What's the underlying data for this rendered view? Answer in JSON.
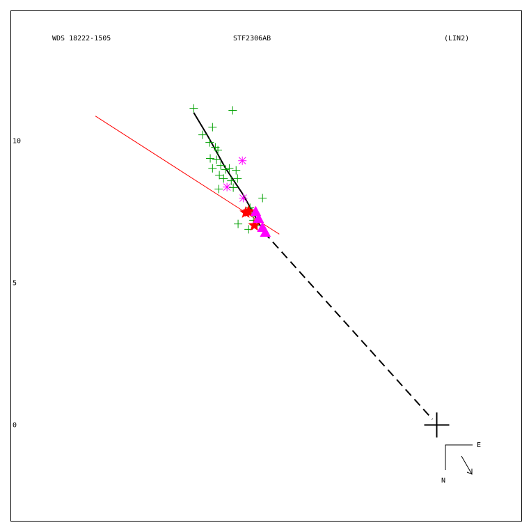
{
  "chart_data": {
    "type": "scatter",
    "title": "WDS 18222-1505",
    "subtitle": "STF2306AB",
    "annotation": "(LIN2)",
    "compass": {
      "east": "E",
      "north": "N"
    },
    "xlim": [
      -15.0,
      3.0
    ],
    "ylim": [
      -3.4,
      14.6
    ],
    "yticks": [
      0,
      5,
      10
    ],
    "series": [
      {
        "marker": "plus",
        "color": "#00a000",
        "x": [
          -8.55,
          -7.18,
          -7.89,
          -8.24,
          -7.99,
          -7.79,
          -7.7,
          -7.97,
          -7.75,
          -7.6,
          -7.89,
          -7.43,
          -7.3,
          -7.06,
          -7.65,
          -7.5,
          -7.23,
          -7.01,
          -7.67,
          -7.16,
          -6.13,
          -6.57,
          -6.5,
          -6.99,
          -6.45,
          -6.62,
          -6.32
        ],
        "values": [
          11.15,
          11.08,
          10.49,
          10.22,
          9.95,
          9.78,
          9.68,
          9.39,
          9.34,
          9.14,
          9.04,
          9.0,
          9.04,
          8.97,
          8.8,
          8.68,
          8.6,
          8.68,
          8.31,
          8.36,
          7.99,
          7.65,
          7.5,
          7.08,
          7.21,
          6.89,
          7.03
        ]
      },
      {
        "marker": "asterisk",
        "color": "#ff00ff",
        "x": [
          -6.84,
          -7.38,
          -6.81
        ],
        "values": [
          9.31,
          8.38,
          7.99
        ]
      },
      {
        "marker": "star",
        "color": "#ff0000",
        "x": [
          -6.72,
          -6.62,
          -6.42
        ],
        "values": [
          7.48,
          7.52,
          7.03
        ]
      },
      {
        "marker": "triangle",
        "color": "#ff00ff",
        "x": [
          -6.37,
          -6.27,
          -6.13,
          -6.03
        ],
        "values": [
          7.52,
          7.28,
          6.96,
          6.79
        ]
      },
      {
        "marker": "big-plus",
        "color": "#000000",
        "x": [
          0
        ],
        "values": [
          0
        ]
      }
    ],
    "lines": [
      {
        "color": "#ff0000",
        "dash": false,
        "width": 1,
        "x": [
          -12.01,
          -5.54
        ],
        "values": [
          10.88,
          6.72
        ]
      },
      {
        "color": "#000000",
        "dash": false,
        "width": 2,
        "x": [
          -8.55,
          -8.04,
          -7.43,
          -6.81,
          -6.45,
          -6.08
        ],
        "values": [
          11.0,
          10.15,
          9.04,
          8.11,
          7.45,
          6.79
        ]
      },
      {
        "color": "#000000",
        "dash": true,
        "width": 2,
        "x": [
          -6.08,
          -0.15
        ],
        "values": [
          6.79,
          0.2
        ]
      }
    ]
  }
}
